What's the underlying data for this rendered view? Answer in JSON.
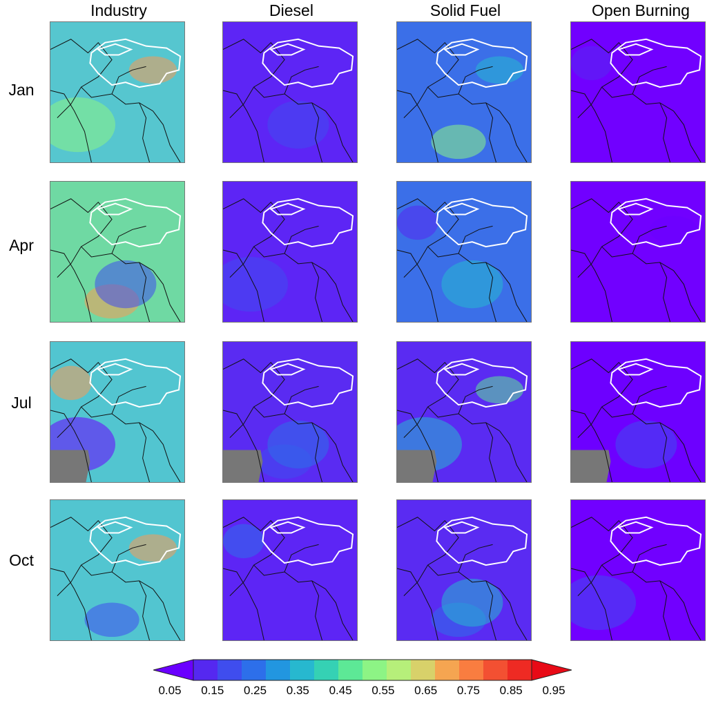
{
  "columns": [
    "Industry",
    "Diesel",
    "Solid Fuel",
    "Open Burning"
  ],
  "rows": [
    "Jan",
    "Apr",
    "Jul",
    "Oct"
  ],
  "colorbar": {
    "ticks": [
      "0.05",
      "0.15",
      "0.25",
      "0.35",
      "0.45",
      "0.55",
      "0.65",
      "0.75",
      "0.85",
      "0.95"
    ],
    "colors": [
      "#6a00ff",
      "#5528f0",
      "#3f4dee",
      "#2d6fea",
      "#2296e0",
      "#27b8cf",
      "#35d1b4",
      "#5de896",
      "#8df485",
      "#b6ef7a",
      "#d8d16a",
      "#f5a551",
      "#f97d40",
      "#f35032",
      "#ee2a23",
      "#e80a16"
    ],
    "extend": "both",
    "missing_color": "#777777"
  },
  "panels": [
    {
      "row": "Jan",
      "col": "Industry",
      "base": "#56c6cf",
      "accents": [
        "#8df485",
        "#f79b55"
      ],
      "missing": false
    },
    {
      "row": "Jan",
      "col": "Diesel",
      "base": "#5d25f5",
      "accents": [
        "#3f4dee"
      ],
      "missing": false
    },
    {
      "row": "Jan",
      "col": "Solid Fuel",
      "base": "#3b6fe8",
      "accents": [
        "#27b8cf",
        "#8df485"
      ],
      "missing": false
    },
    {
      "row": "Jan",
      "col": "Open Burning",
      "base": "#7100ff",
      "accents": [
        "#5528f0"
      ],
      "missing": false
    },
    {
      "row": "Apr",
      "col": "Industry",
      "base": "#6fd9a3",
      "accents": [
        "#f79b55",
        "#3f4dee"
      ],
      "missing": false
    },
    {
      "row": "Apr",
      "col": "Diesel",
      "base": "#5d25f5",
      "accents": [
        "#3f4dee"
      ],
      "missing": false
    },
    {
      "row": "Apr",
      "col": "Solid Fuel",
      "base": "#3b6fe8",
      "accents": [
        "#27b8cf",
        "#5528f0"
      ],
      "missing": false
    },
    {
      "row": "Apr",
      "col": "Open Burning",
      "base": "#7100ff",
      "accents": [
        "#6a00ff"
      ],
      "missing": false
    },
    {
      "row": "Jul",
      "col": "Industry",
      "base": "#52c5d0",
      "accents": [
        "#f79b55",
        "#6a00ff"
      ],
      "missing": true
    },
    {
      "row": "Jul",
      "col": "Diesel",
      "base": "#5a2bf2",
      "accents": [
        "#3f4dee",
        "#2d6fea"
      ],
      "missing": true
    },
    {
      "row": "Jul",
      "col": "Solid Fuel",
      "base": "#5a2bf2",
      "accents": [
        "#27b8cf",
        "#5de896"
      ],
      "missing": true
    },
    {
      "row": "Jul",
      "col": "Open Burning",
      "base": "#6d00ff",
      "accents": [
        "#3f4dee"
      ],
      "missing": true
    },
    {
      "row": "Oct",
      "col": "Industry",
      "base": "#52c5d0",
      "accents": [
        "#f79b55",
        "#3f4dee"
      ],
      "missing": false
    },
    {
      "row": "Oct",
      "col": "Diesel",
      "base": "#5d25f5",
      "accents": [
        "#2d6fea"
      ],
      "missing": false
    },
    {
      "row": "Oct",
      "col": "Solid Fuel",
      "base": "#5a2bf2",
      "accents": [
        "#2d6fea",
        "#27b8cf"
      ],
      "missing": false
    },
    {
      "row": "Oct",
      "col": "Open Burning",
      "base": "#7100ff",
      "accents": [
        "#3f4dee"
      ],
      "missing": false
    }
  ]
}
